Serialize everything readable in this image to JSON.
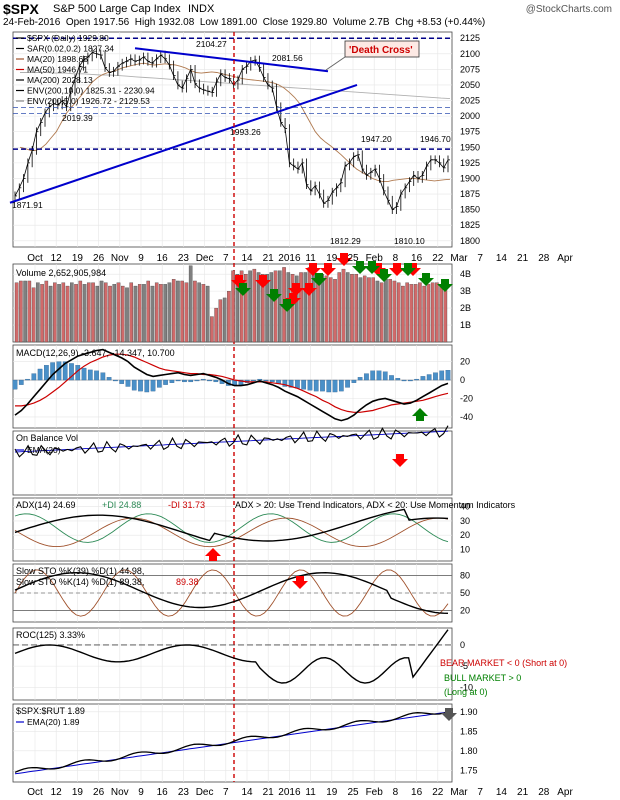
{
  "header": {
    "symbol": "$SPX",
    "name": "S&P 500 Large Cap Index",
    "exchange": "INDX",
    "watermark": "@StockCharts.com",
    "date": "24-Feb-2016",
    "open_label": "Open",
    "open": "1917.56",
    "high_label": "High",
    "high": "1932.08",
    "low_label": "Low",
    "low": "1891.00",
    "close_label": "Close",
    "close": "1929.80",
    "volume_label": "Volume",
    "volume": "2.7B",
    "chg_label": "Chg",
    "chg": "+8.53 (+0.44%)"
  },
  "colors": {
    "price_blue": "#0000cc",
    "ma_red": "#cc0000",
    "ma_brown": "#b07a50",
    "sar": "#000000",
    "env": "#b0b0b0",
    "vol_up": "#d06a6a",
    "vol_down": "#808080",
    "macd_hist": "#4a90c8",
    "arrow_red": "#ff0000",
    "arrow_green": "#008000",
    "death_cross_bg": "#fde9e4"
  },
  "chart_data": {
    "type": "line",
    "title": "$SPX S&P 500 Large Cap Index INDX",
    "x_axis_labels": [
      "Oct",
      "12",
      "19",
      "26",
      "Nov",
      "9",
      "16",
      "23",
      "Dec",
      "7",
      "14",
      "21",
      "2016",
      "11",
      "19",
      "25",
      "Feb",
      "8",
      "16",
      "22",
      "Mar",
      "7",
      "14",
      "21",
      "28",
      "Apr"
    ],
    "price_panel": {
      "legend": [
        "$SPX (Daily) 1929.80",
        "SAR(0.02,0.2) 1827.34",
        "MA(20) 1898.65",
        "MA(50) 1946.71",
        "MA(200) 2028.13",
        "ENV(200,10.0) 1825.31 - 2230.94",
        "ENV(200,5.0) 1926.72 - 2129.53"
      ],
      "y_ticks": [
        1800,
        1825,
        1850,
        1875,
        1900,
        1925,
        1950,
        1975,
        2000,
        2025,
        2050,
        2075,
        2100,
        2125
      ],
      "ylim": [
        1790,
        2135
      ],
      "annotations": [
        "1871.91",
        "2104.27",
        "2081.56",
        "2019.39",
        "1993.26",
        "1947.20",
        "1946.70",
        "1812.29",
        "1810.10"
      ],
      "callout": "'Death Cross'",
      "close": [
        1872,
        1885,
        1900,
        1925,
        1945,
        1975,
        1990,
        2005,
        2015,
        2020,
        2018,
        2025,
        2015,
        2040,
        2060,
        2080,
        2090,
        2095,
        2102,
        2100,
        2098,
        2078,
        2070,
        2072,
        2080,
        2085,
        2088,
        2092,
        2088,
        2090,
        2095,
        2088,
        2085,
        2092,
        2098,
        2092,
        2082,
        2065,
        2050,
        2045,
        2060,
        2075,
        2052,
        2045,
        2042,
        2040,
        2038,
        2055,
        2068,
        2062,
        2060,
        2050,
        2058,
        2075,
        2080,
        2088,
        2090,
        2078,
        2062,
        2050,
        2045,
        2015,
        1990,
        1980,
        1925,
        1920,
        1915,
        1925,
        1890,
        1880,
        1888,
        1875,
        1860,
        1865,
        1878,
        1885,
        1893,
        1920,
        1925,
        1935,
        1938,
        1915,
        1905,
        1910,
        1915,
        1900,
        1880,
        1865,
        1850,
        1855,
        1875,
        1885,
        1895,
        1905,
        1900,
        1905,
        1920,
        1930,
        1930,
        1925,
        1917,
        1929.8
      ],
      "ma20": [
        1950,
        1948,
        1945,
        1945,
        1948,
        1955,
        1965,
        1975,
        1990,
        2005,
        2015,
        2025,
        2035,
        2045,
        2055,
        2062,
        2067,
        2070,
        2072,
        2075,
        2078,
        2080,
        2082,
        2084,
        2085,
        2083,
        2082,
        2083,
        2084,
        2083,
        2082,
        2080,
        2077,
        2073,
        2070,
        2069,
        2070,
        2071,
        2070,
        2068,
        2066,
        2064,
        2062,
        2060,
        2059,
        2058,
        2057,
        2056,
        2055,
        2053,
        2050,
        2045,
        2038,
        2030,
        2020,
        2005,
        1990,
        1975,
        1965,
        1958,
        1952,
        1945,
        1938,
        1930,
        1922,
        1915,
        1910,
        1905,
        1900,
        1897,
        1895,
        1895,
        1897,
        1898,
        1899,
        1900,
        1900,
        1899,
        1898,
        1897,
        1896,
        1897,
        1898,
        1898.65
      ],
      "ma200": [
        2070,
        2070,
        2070,
        2070,
        2069,
        2069,
        2068,
        2068,
        2067,
        2066,
        2066,
        2065,
        2064,
        2063,
        2062,
        2061,
        2060,
        2059,
        2058,
        2057,
        2056,
        2055,
        2054,
        2053,
        2052,
        2051,
        2050,
        2049,
        2048,
        2047,
        2046,
        2045,
        2044,
        2043,
        2042,
        2041,
        2040,
        2039,
        2038,
        2037,
        2036,
        2035,
        2034,
        2033,
        2032,
        2031,
        2030,
        2029,
        2028.13
      ]
    },
    "volume_panel": {
      "label": "Volume 2,652,905,984",
      "y_ticks_labels": [
        "4B",
        "3B",
        "2B",
        "1B"
      ],
      "y_ticks": [
        4,
        3,
        2,
        1
      ],
      "ylim": [
        0,
        4.6
      ],
      "values": [
        3.5,
        3.6,
        3.6,
        3.6,
        3.2,
        3.5,
        3.4,
        3.6,
        3.3,
        3.5,
        3.4,
        3.5,
        3.3,
        3.5,
        3.4,
        3.6,
        3.4,
        3.5,
        3.5,
        3.3,
        3.6,
        3.5,
        3.3,
        3.4,
        3.5,
        3.3,
        3.2,
        3.5,
        3.3,
        3.4,
        3.4,
        3.6,
        3.3,
        3.5,
        3.4,
        3.4,
        3.5,
        3.7,
        3.6,
        3.6,
        3.5,
        4.5,
        3.6,
        3.5,
        3.4,
        3.3,
        1.5,
        2.0,
        2.5,
        2.6,
        3.0,
        4.2,
        4.0,
        4.2,
        4.0,
        4.2,
        4.3,
        4.1,
        4.0,
        4.0,
        4.1,
        4.2,
        4.2,
        4.4,
        4.1,
        4.0,
        3.9,
        4.1,
        4.1,
        4.4,
        4.2,
        3.8,
        4.0,
        3.9,
        3.8,
        3.7,
        4.1,
        4.3,
        4.1,
        4.0,
        4.0,
        3.8,
        3.9,
        3.8,
        3.8,
        3.6,
        3.5,
        3.7,
        3.7,
        3.6,
        3.5,
        3.3,
        3.5,
        3.4,
        3.4,
        3.5,
        3.3,
        3.4,
        3.5,
        3.5,
        3.4,
        3.4
      ],
      "up": [
        1,
        1,
        0,
        1,
        1,
        0,
        1,
        1,
        0,
        1,
        0,
        1,
        1,
        0,
        1,
        1,
        0,
        1,
        1,
        0,
        0,
        1,
        1,
        0,
        1,
        1,
        0,
        1,
        0,
        1,
        0,
        1,
        0,
        1,
        1,
        0,
        0,
        1,
        0,
        1,
        1,
        0,
        1,
        0,
        1,
        0,
        1,
        1,
        1,
        0,
        1,
        1,
        0,
        1,
        1,
        0,
        1,
        0,
        1,
        0,
        0,
        1,
        0,
        1,
        0,
        1,
        0,
        1,
        0,
        1,
        0,
        1,
        0,
        1,
        1,
        1,
        1,
        1,
        0,
        1,
        1,
        0,
        1,
        1,
        1,
        0,
        1,
        0,
        1,
        1,
        1,
        1,
        1,
        1,
        1,
        1,
        1,
        1,
        1,
        1,
        1,
        1
      ]
    },
    "macd_panel": {
      "label": "MACD(12,26,9) -3.647, -14.347, 10.700",
      "y_ticks": [
        20,
        0,
        -20,
        -40
      ],
      "ylim": [
        -52,
        38
      ],
      "macd": [
        -38,
        -33,
        -26,
        -18,
        -10,
        -2,
        6,
        12,
        18,
        22,
        26,
        28,
        30,
        32,
        33,
        30,
        27,
        24,
        20,
        14,
        10,
        6,
        4,
        5,
        6,
        7,
        8,
        6,
        5,
        6,
        7,
        5,
        3,
        0,
        -4,
        -6,
        -6,
        -5,
        -3,
        -1,
        -3,
        -5,
        -8,
        -12,
        -15,
        -18,
        -22,
        -26,
        -30,
        -34,
        -38,
        -42,
        -44,
        -42,
        -38,
        -32,
        -27,
        -23,
        -21,
        -20,
        -22,
        -24,
        -26,
        -25,
        -22,
        -18,
        -14,
        -10,
        -6,
        -3.647
      ],
      "signal": [
        -28,
        -28,
        -27,
        -25,
        -22,
        -18,
        -13,
        -8,
        -2,
        4,
        10,
        15,
        19,
        22,
        25,
        27,
        28,
        28,
        27,
        25,
        22,
        19,
        16,
        13,
        11,
        10,
        9,
        8,
        7,
        7,
        6,
        6,
        5,
        4,
        2,
        0,
        -1,
        -2,
        -2,
        -2,
        -2,
        -3,
        -4,
        -5,
        -7,
        -9,
        -12,
        -15,
        -18,
        -22,
        -25,
        -29,
        -32,
        -34,
        -35,
        -35,
        -34,
        -33,
        -31,
        -29,
        -27,
        -26,
        -25,
        -24,
        -23,
        -22,
        -20,
        -18,
        -16,
        -14.347
      ]
    },
    "obv_panel": {
      "label": "On Balance Vol",
      "ema_label": "EMA(20)"
    },
    "adx_panel": {
      "label": "ADX(14) 24.69",
      "plus_di_label": "+DI 24.88",
      "minus_di_label": "-DI 31.73",
      "note": "ADX > 20: Use Trend Indicators, ADX < 20: Use Momentum Indicators",
      "y_ticks": [
        40,
        30,
        20,
        10
      ],
      "ylim": [
        2,
        46
      ]
    },
    "sto_panel": {
      "label1": "Slow STO %K(39) %D(1) 44.98,",
      "label1_value": "44.98",
      "label2": "Slow STO %K(14) %D(1) 89.38,",
      "label2_value": "89.38",
      "y_ticks": [
        80,
        50,
        20
      ],
      "ylim": [
        0,
        100
      ]
    },
    "roc_panel": {
      "label": "ROC(125) 3.33%",
      "y_ticks": [
        0,
        -5,
        -10
      ],
      "ylim": [
        -13,
        4
      ],
      "bear_note": "BEAR MARKET < 0 (Short at 0)",
      "bull_note_1": "BULL MARKET > 0",
      "bull_note_2": "(Long at 0)"
    },
    "ratio_panel": {
      "label": "$SPX:$RUT 1.89",
      "ema_label": "EMA(20) 1.89",
      "y_ticks": [
        1.9,
        1.85,
        1.8,
        1.75
      ],
      "ylim": [
        1.72,
        1.92
      ]
    }
  },
  "bottom_x_labels": [
    "Oct",
    "12",
    "19",
    "26",
    "Nov",
    "9",
    "16",
    "23",
    "Dec",
    "7",
    "14",
    "21",
    "2016",
    "11",
    "19",
    "25",
    "Feb",
    "8",
    "16",
    "22",
    "Mar",
    "7",
    "14",
    "21",
    "28",
    "Apr"
  ]
}
